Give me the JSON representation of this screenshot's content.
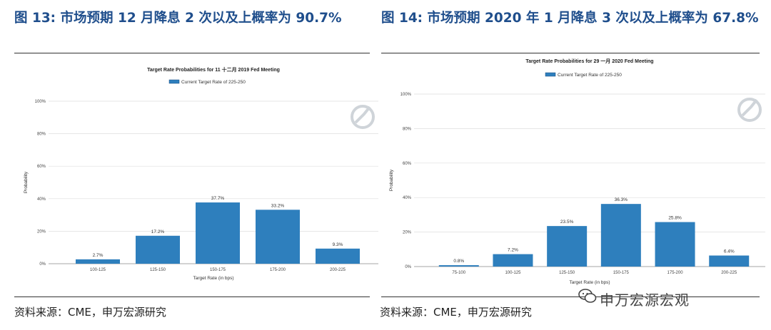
{
  "figures": [
    {
      "title": "图 13: 市场预期 12 月降息 2 次以及上概率为 90.7%",
      "source": "资料来源：CME，申万宏源研究",
      "chart_data": {
        "type": "bar",
        "title": "Target Rate Probabilities for 11 十二月 2019 Fed Meeting",
        "legend": "Current Target Rate of 225-250",
        "xlabel": "Target Rate (in bps)",
        "ylabel": "Probability",
        "ylim": [
          0,
          100
        ],
        "yticks": [
          "0%",
          "20%",
          "40%",
          "60%",
          "80%",
          "100%"
        ],
        "categories": [
          "100-125",
          "125-150",
          "150-175",
          "175-200",
          "200-225"
        ],
        "values": [
          2.7,
          17.2,
          37.7,
          33.2,
          9.3
        ],
        "labels": [
          "2.7%",
          "17.2%",
          "37.7%",
          "33.2%",
          "9.3%"
        ],
        "bar_color": "#2e7fbd",
        "grid": true
      }
    },
    {
      "title": "图 14: 市场预期 2020 年 1 月降息 3 次以及上概率为 67.8%",
      "source": "资料来源：CME，申万宏源研究",
      "chart_data": {
        "type": "bar",
        "title": "Target Rate Probabilities for 29 一月 2020 Fed Meeting",
        "legend": "Current Target Rate of 225-250",
        "xlabel": "Target Rate (in bps)",
        "ylabel": "Probability",
        "ylim": [
          0,
          100
        ],
        "yticks": [
          "0%",
          "20%",
          "40%",
          "60%",
          "80%",
          "100%"
        ],
        "categories": [
          "75-100",
          "100-125",
          "125-150",
          "150-175",
          "175-200",
          "200-225"
        ],
        "values": [
          0.8,
          7.2,
          23.5,
          36.3,
          25.8,
          6.4
        ],
        "labels": [
          "0.8%",
          "7.2%",
          "23.5%",
          "36.3%",
          "25.8%",
          "6.4%"
        ],
        "bar_color": "#2e7fbd",
        "grid": true
      }
    }
  ],
  "watermark": "申万宏源宏观"
}
